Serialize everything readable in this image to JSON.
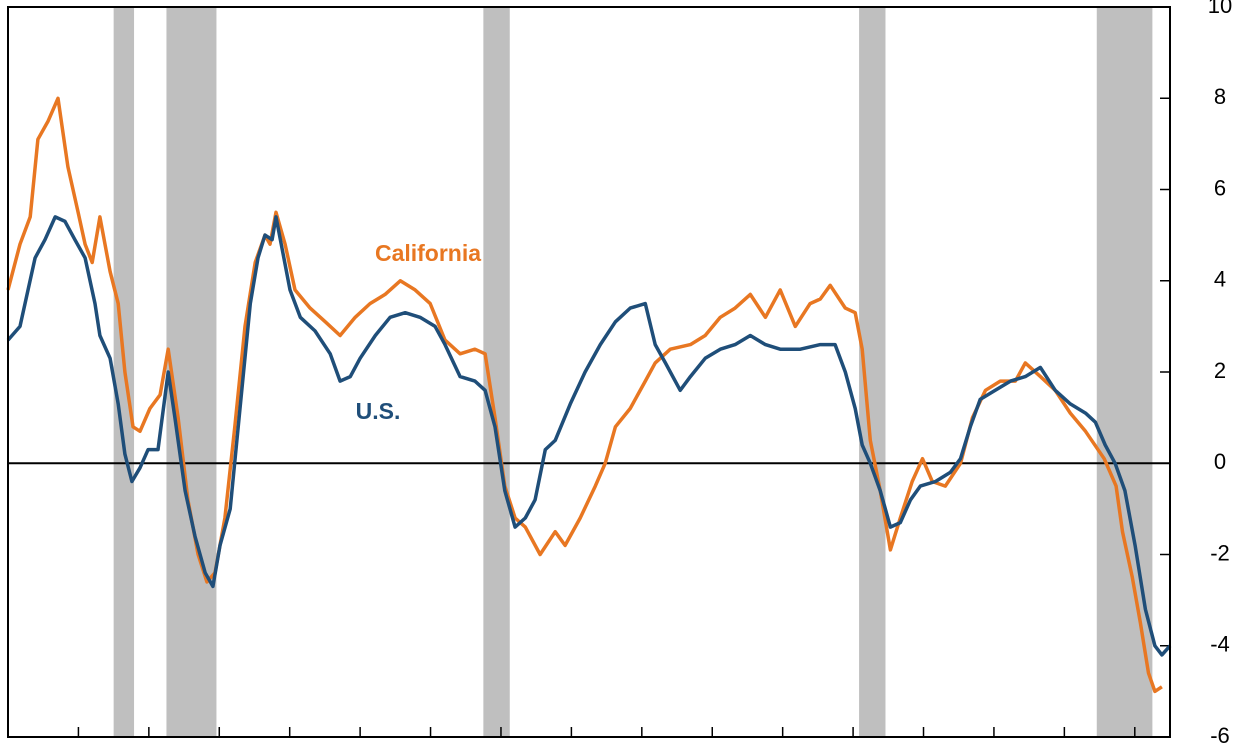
{
  "chart_data": {
    "type": "line",
    "xlim": [
      1977.0,
      2010.0
    ],
    "xticks": [
      1979,
      1981,
      1983,
      1985,
      1987,
      1989,
      1991,
      1993,
      1995,
      1997,
      1999,
      2001,
      2003,
      2005,
      2007,
      2009
    ],
    "ylim": [
      -6,
      10
    ],
    "yticks": [
      -6,
      -4,
      -2,
      0,
      2,
      4,
      6,
      8,
      10
    ],
    "recession_color": "#bfbfbf",
    "recessions": [
      [
        1980.0,
        1980.58
      ],
      [
        1981.5,
        1982.92
      ],
      [
        1990.5,
        1991.25
      ],
      [
        2001.17,
        2001.92
      ],
      [
        2007.92,
        2009.5
      ]
    ],
    "series": [
      {
        "name": "California",
        "color": "#e87722",
        "x": [
          1977.0,
          1977.34,
          1977.63,
          1977.85,
          1978.14,
          1978.42,
          1978.7,
          1978.99,
          1979.19,
          1979.39,
          1979.61,
          1979.9,
          1980.13,
          1980.32,
          1980.55,
          1980.75,
          1981.03,
          1981.32,
          1981.55,
          1981.83,
          1982.11,
          1982.4,
          1982.65,
          1982.88,
          1983.16,
          1983.44,
          1983.73,
          1984.02,
          1984.3,
          1984.44,
          1984.61,
          1984.87,
          1985.15,
          1985.58,
          1986.01,
          1986.43,
          1986.86,
          1987.28,
          1987.71,
          1988.14,
          1988.56,
          1988.99,
          1989.41,
          1989.84,
          1990.26,
          1990.55,
          1990.83,
          1991.11,
          1991.4,
          1991.69,
          1992.11,
          1992.54,
          1992.82,
          1993.25,
          1993.68,
          1993.96,
          1994.25,
          1994.67,
          1995.1,
          1995.38,
          1995.81,
          1996.38,
          1996.8,
          1997.23,
          1997.65,
          1998.08,
          1998.51,
          1998.93,
          1999.36,
          1999.78,
          2000.07,
          2000.35,
          2000.78,
          2001.06,
          2001.26,
          2001.49,
          2001.77,
          2002.06,
          2002.34,
          2002.68,
          2002.97,
          2003.25,
          2003.62,
          2004.05,
          2004.39,
          2004.76,
          2005.18,
          2005.61,
          2005.89,
          2006.32,
          2006.74,
          2007.17,
          2007.6,
          2008.13,
          2008.47,
          2008.65,
          2008.93,
          2009.16,
          2009.39,
          2009.57,
          2009.77
        ],
        "values": [
          3.8,
          4.8,
          5.4,
          7.1,
          7.5,
          8.0,
          6.5,
          5.5,
          4.8,
          4.4,
          5.4,
          4.2,
          3.5,
          2.0,
          0.8,
          0.7,
          1.2,
          1.5,
          2.5,
          1.0,
          -0.8,
          -2.0,
          -2.6,
          -2.4,
          -1.2,
          0.8,
          3.0,
          4.4,
          5.0,
          4.8,
          5.5,
          4.8,
          3.8,
          3.4,
          3.1,
          2.8,
          3.2,
          3.5,
          3.7,
          4.0,
          3.8,
          3.5,
          2.7,
          2.4,
          2.5,
          2.4,
          1.0,
          -0.5,
          -1.2,
          -1.4,
          -2.0,
          -1.5,
          -1.8,
          -1.2,
          -0.5,
          0,
          0.8,
          1.2,
          1.8,
          2.2,
          2.5,
          2.6,
          2.8,
          3.2,
          3.4,
          3.7,
          3.2,
          3.8,
          3.0,
          3.5,
          3.6,
          3.9,
          3.4,
          3.3,
          2.5,
          0.5,
          -0.6,
          -1.9,
          -1.2,
          -0.4,
          0.1,
          -0.4,
          -0.5,
          0,
          1.0,
          1.6,
          1.8,
          1.8,
          2.2,
          1.9,
          1.6,
          1.1,
          0.7,
          0.1,
          -0.5,
          -1.5,
          -2.5,
          -3.5,
          -4.6,
          -5.0,
          -4.9
        ]
      },
      {
        "name": "U.S.",
        "color": "#1f4e79",
        "x": [
          1977.0,
          1977.34,
          1977.77,
          1978.05,
          1978.34,
          1978.62,
          1978.9,
          1979.19,
          1979.47,
          1979.61,
          1979.9,
          1980.13,
          1980.32,
          1980.52,
          1980.75,
          1980.98,
          1981.26,
          1981.55,
          1981.74,
          1982.03,
          1982.31,
          1982.6,
          1982.82,
          1983.02,
          1983.31,
          1983.59,
          1983.88,
          1984.1,
          1984.3,
          1984.5,
          1984.61,
          1984.81,
          1985.01,
          1985.3,
          1985.72,
          1986.15,
          1986.43,
          1986.72,
          1987.0,
          1987.43,
          1987.85,
          1988.28,
          1988.7,
          1989.13,
          1989.41,
          1989.84,
          1990.26,
          1990.55,
          1990.83,
          1991.11,
          1991.4,
          1991.69,
          1991.97,
          1992.26,
          1992.54,
          1992.97,
          1993.39,
          1993.82,
          1994.25,
          1994.67,
          1995.1,
          1995.38,
          1995.67,
          1996.09,
          1996.38,
          1996.8,
          1997.23,
          1997.65,
          1998.08,
          1998.51,
          1998.93,
          1999.5,
          2000.07,
          2000.49,
          2000.78,
          2001.06,
          2001.26,
          2001.49,
          2001.77,
          2002.06,
          2002.34,
          2002.63,
          2002.91,
          2003.34,
          2003.76,
          2004.05,
          2004.33,
          2004.61,
          2005.04,
          2005.47,
          2005.89,
          2006.32,
          2006.74,
          2007.17,
          2007.6,
          2007.88,
          2008.16,
          2008.44,
          2008.72,
          2009.01,
          2009.3,
          2009.57,
          2009.77,
          2010.0
        ],
        "values": [
          2.7,
          3.0,
          4.5,
          4.9,
          5.4,
          5.3,
          4.9,
          4.5,
          3.5,
          2.8,
          2.3,
          1.3,
          0.2,
          -0.4,
          -0.1,
          0.3,
          0.3,
          2.0,
          1.0,
          -0.6,
          -1.6,
          -2.4,
          -2.7,
          -1.8,
          -1.0,
          1.2,
          3.5,
          4.5,
          5.0,
          4.9,
          5.4,
          4.6,
          3.8,
          3.2,
          2.9,
          2.4,
          1.8,
          1.9,
          2.3,
          2.8,
          3.2,
          3.3,
          3.2,
          3.0,
          2.6,
          1.9,
          1.8,
          1.6,
          0.8,
          -0.6,
          -1.4,
          -1.2,
          -0.8,
          0.3,
          0.5,
          1.3,
          2.0,
          2.6,
          3.1,
          3.4,
          3.5,
          2.6,
          2.2,
          1.6,
          1.9,
          2.3,
          2.5,
          2.6,
          2.8,
          2.6,
          2.5,
          2.5,
          2.6,
          2.6,
          2.0,
          1.2,
          0.4,
          0,
          -0.6,
          -1.4,
          -1.3,
          -0.8,
          -0.5,
          -0.4,
          -0.2,
          0.1,
          0.8,
          1.4,
          1.6,
          1.8,
          1.9,
          2.1,
          1.6,
          1.3,
          1.1,
          0.9,
          0.4,
          0,
          -0.6,
          -1.8,
          -3.2,
          -4.0,
          -4.2,
          -4.0
        ]
      }
    ]
  }
}
